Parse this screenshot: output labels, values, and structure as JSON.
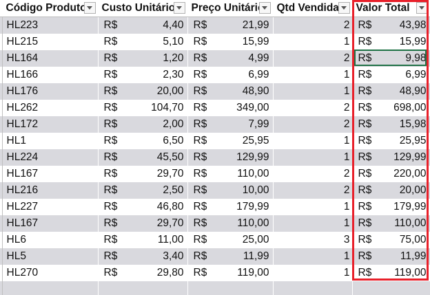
{
  "header": {
    "codigo": "Código Produto",
    "custo": "Custo Unitário",
    "preco": "Preço Unitário",
    "qtd": "Qtd Vendida",
    "valor": "Valor Total"
  },
  "currency": "R$",
  "rows": [
    {
      "codigo": "HL223",
      "custo": "4,40",
      "preco": "21,99",
      "qtd": "2",
      "valor": "43,98"
    },
    {
      "codigo": "HL215",
      "custo": "5,10",
      "preco": "15,99",
      "qtd": "1",
      "valor": "15,99"
    },
    {
      "codigo": "HL164",
      "custo": "1,20",
      "preco": "4,99",
      "qtd": "2",
      "valor": "9,98"
    },
    {
      "codigo": "HL166",
      "custo": "2,30",
      "preco": "6,99",
      "qtd": "1",
      "valor": "6,99"
    },
    {
      "codigo": "HL176",
      "custo": "20,00",
      "preco": "48,90",
      "qtd": "1",
      "valor": "48,90"
    },
    {
      "codigo": "HL262",
      "custo": "104,70",
      "preco": "349,00",
      "qtd": "2",
      "valor": "698,00"
    },
    {
      "codigo": "HL172",
      "custo": "2,00",
      "preco": "7,99",
      "qtd": "2",
      "valor": "15,98"
    },
    {
      "codigo": "HL1",
      "custo": "6,50",
      "preco": "25,95",
      "qtd": "1",
      "valor": "25,95"
    },
    {
      "codigo": "HL224",
      "custo": "45,50",
      "preco": "129,99",
      "qtd": "1",
      "valor": "129,99"
    },
    {
      "codigo": "HL167",
      "custo": "29,70",
      "preco": "110,00",
      "qtd": "2",
      "valor": "220,00"
    },
    {
      "codigo": "HL216",
      "custo": "2,50",
      "preco": "10,00",
      "qtd": "2",
      "valor": "20,00"
    },
    {
      "codigo": "HL227",
      "custo": "46,80",
      "preco": "179,99",
      "qtd": "1",
      "valor": "179,99"
    },
    {
      "codigo": "HL167",
      "custo": "29,70",
      "preco": "110,00",
      "qtd": "1",
      "valor": "110,00"
    },
    {
      "codigo": "HL6",
      "custo": "11,00",
      "preco": "25,00",
      "qtd": "3",
      "valor": "75,00"
    },
    {
      "codigo": "HL5",
      "custo": "3,40",
      "preco": "11,99",
      "qtd": "1",
      "valor": "11,99"
    },
    {
      "codigo": "HL270",
      "custo": "29,80",
      "preco": "119,00",
      "qtd": "1",
      "valor": "119,00"
    }
  ],
  "colors": {
    "band": "#d9d9de",
    "selection_outline": "#e8202a",
    "active_cell": "#1e7145"
  },
  "icons": {
    "filter": "filter-dropdown-icon"
  }
}
